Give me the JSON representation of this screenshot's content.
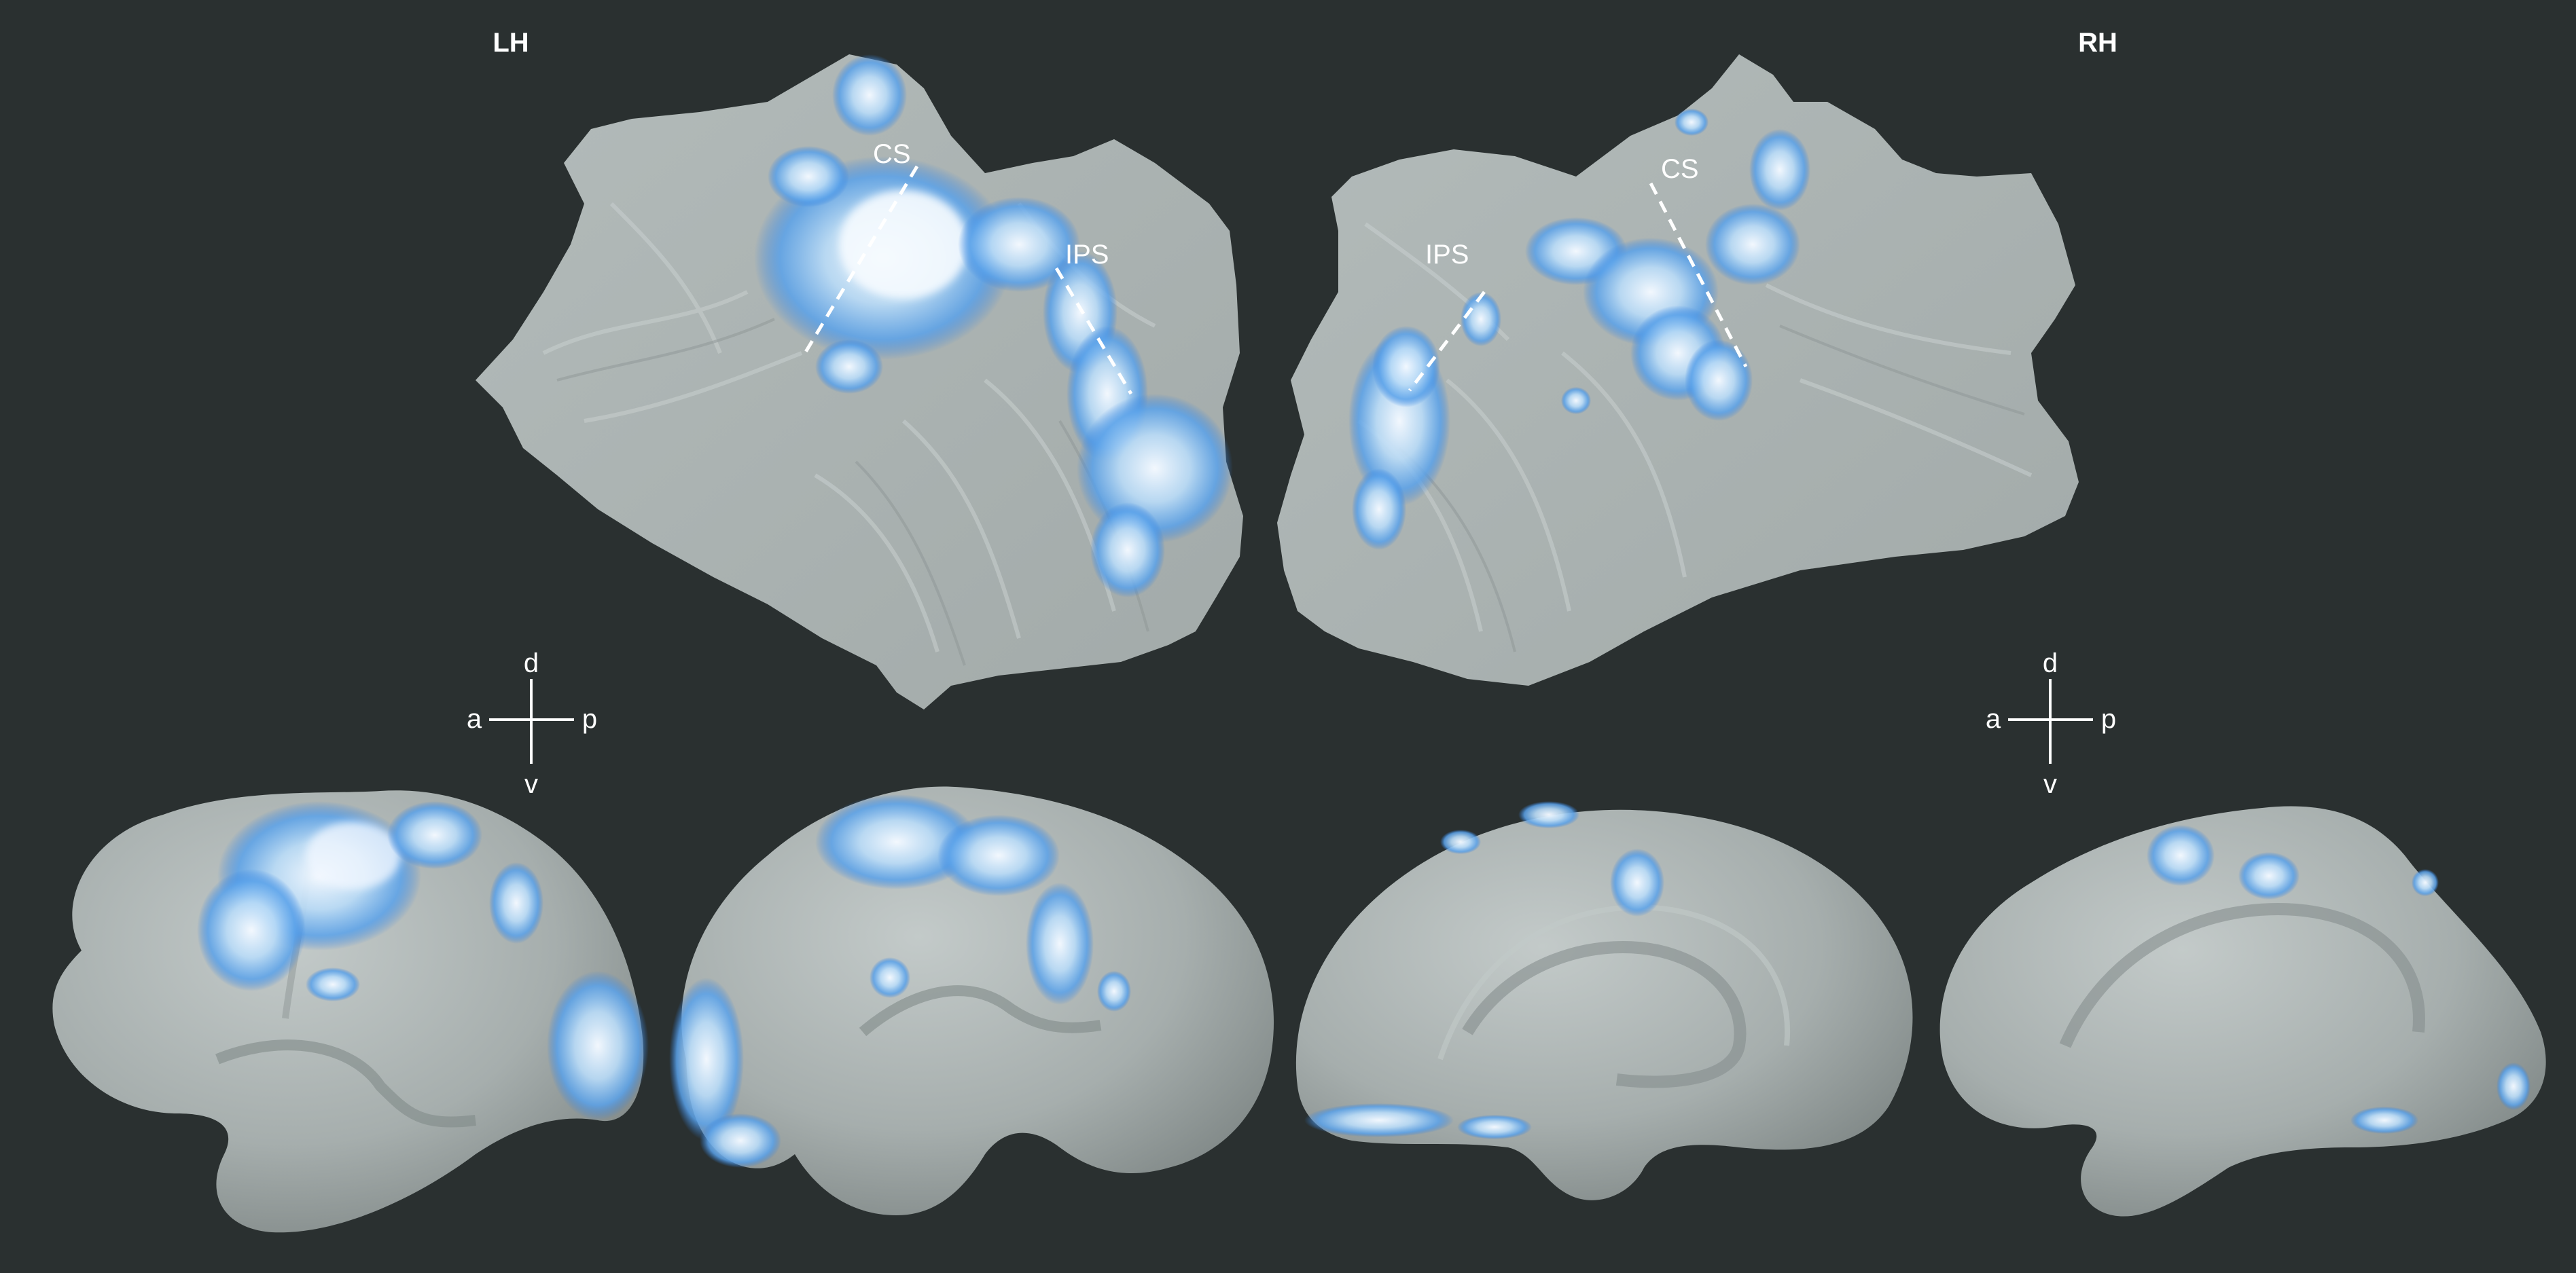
{
  "colors": {
    "background": "#2a3030",
    "cortex": "#a9b1b0",
    "cortex_highlight": "#c8cfce",
    "cortex_shadow": "#7f8886",
    "activation_edge": "#2f7fe0",
    "activation_mid": "#8fc3f2",
    "activation_core": "#f2f8ff",
    "annotation": "#ffffff"
  },
  "hemispheres": {
    "left": {
      "label": "LH"
    },
    "right": {
      "label": "RH"
    }
  },
  "sulci": {
    "left_cs": "CS",
    "left_ips": "IPS",
    "right_cs": "CS",
    "right_ips": "IPS"
  },
  "orientation": {
    "dorsal": "d",
    "ventral": "v",
    "anterior": "a",
    "posterior": "p"
  },
  "panels": [
    {
      "name": "left-flatmap",
      "icon": "flattened-cortex-left"
    },
    {
      "name": "right-flatmap",
      "icon": "flattened-cortex-right"
    },
    {
      "name": "left-lateral-inflated",
      "icon": "inflated-brain-lateral"
    },
    {
      "name": "left-medial-inflated",
      "icon": "inflated-brain-medial"
    },
    {
      "name": "right-medial-inflated",
      "icon": "inflated-brain-medial"
    },
    {
      "name": "right-lateral-inflated",
      "icon": "inflated-brain-lateral"
    }
  ]
}
